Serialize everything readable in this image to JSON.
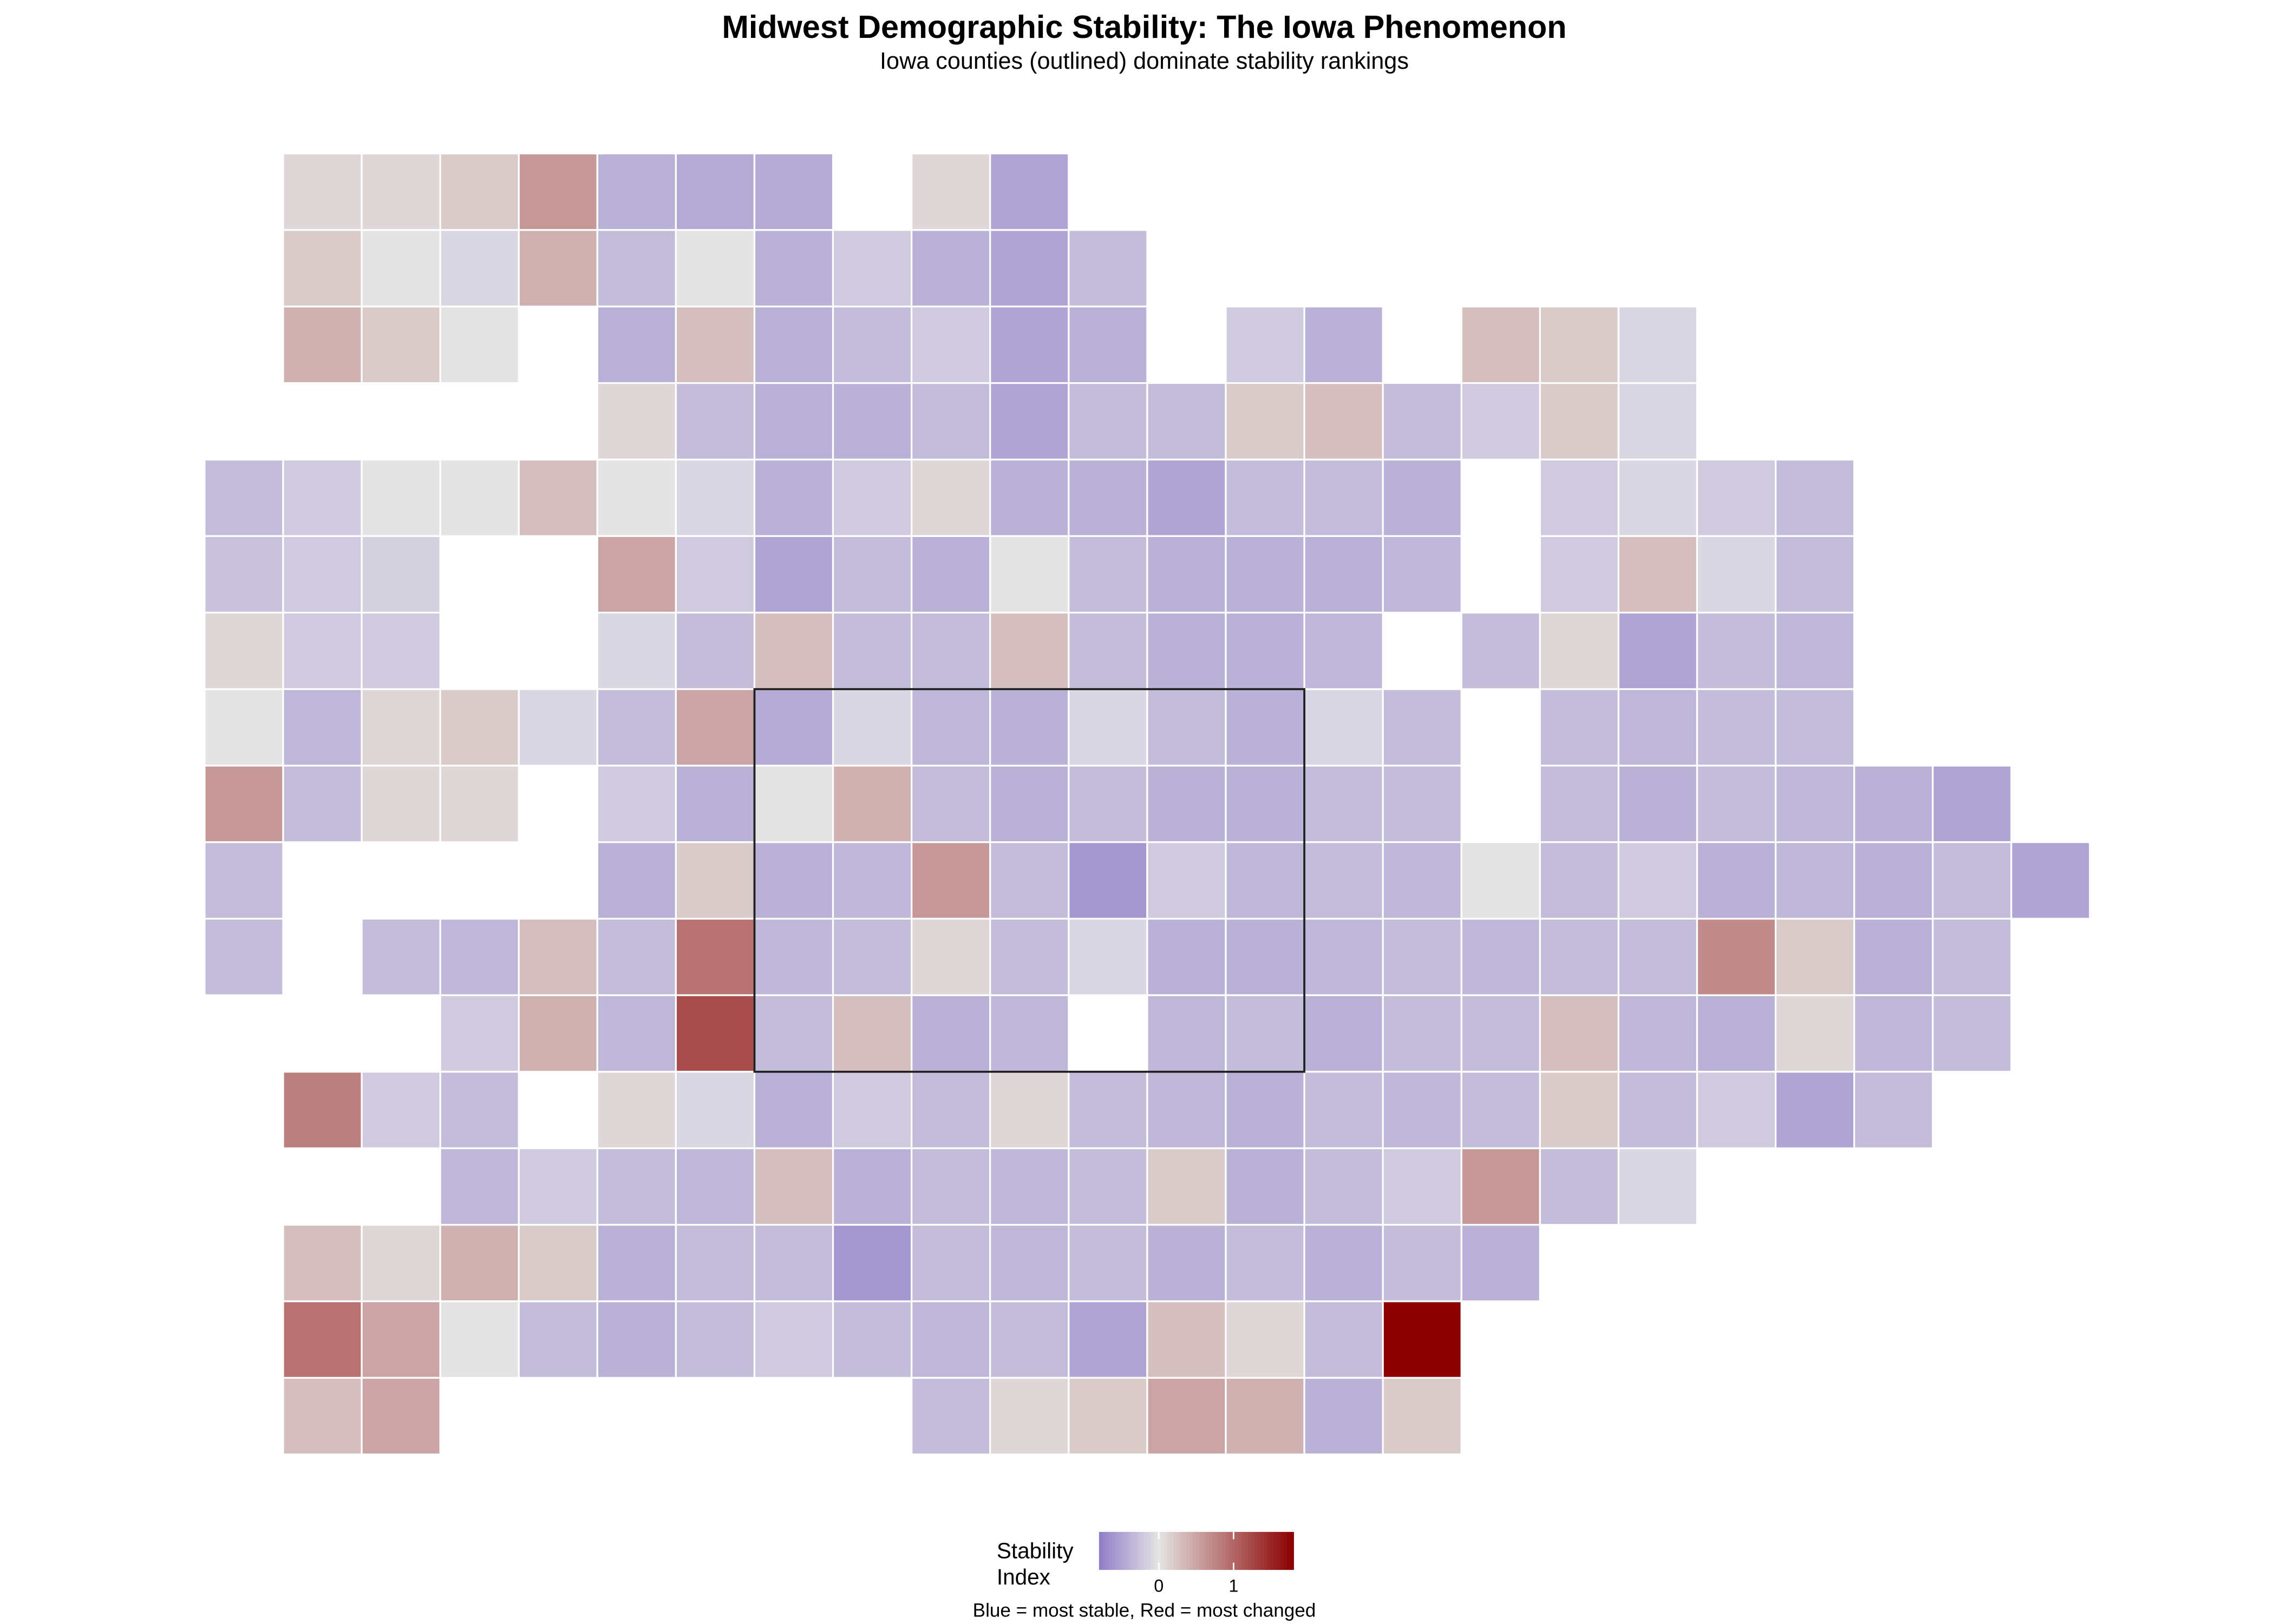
{
  "chart_data": {
    "type": "choropleth",
    "title": "Midwest Demographic Stability: The Iowa Phenomenon",
    "subtitle": "Iowa counties (outlined) dominate stability rankings",
    "legend_title": "Stability Index",
    "caption": "Blue = most stable, Red = most changed",
    "colors": {
      "low": "#8f7dc8",
      "mid": "#e4e4e4",
      "high": "#8b0000"
    },
    "lim": [
      -0.8,
      1.8
    ],
    "ticks": [
      0,
      1
    ],
    "grid": [
      [
        null,
        0.1,
        0.1,
        0.2,
        0.6,
        -0.4,
        -0.45,
        -0.45,
        null,
        0.1,
        -0.5,
        null,
        null,
        null,
        null,
        null,
        null,
        null,
        null,
        null,
        null,
        null,
        null,
        null
      ],
      [
        null,
        0.2,
        0,
        -0.1,
        0.4,
        -0.3,
        0,
        -0.4,
        -0.2,
        -0.4,
        -0.5,
        -0.3,
        null,
        null,
        null,
        null,
        null,
        null,
        null,
        null,
        null,
        null,
        null,
        null
      ],
      [
        null,
        0.4,
        0.2,
        0,
        null,
        -0.4,
        0.3,
        -0.4,
        -0.3,
        -0.2,
        -0.5,
        -0.4,
        null,
        -0.2,
        -0.4,
        null,
        0.3,
        0.2,
        -0.1,
        null,
        null,
        null,
        null,
        null
      ],
      [
        null,
        null,
        null,
        null,
        null,
        0.1,
        -0.3,
        -0.4,
        -0.4,
        -0.3,
        -0.5,
        -0.3,
        -0.3,
        0.2,
        0.3,
        -0.3,
        -0.2,
        0.2,
        -0.1,
        null,
        null,
        null,
        null,
        null
      ],
      [
        -0.3,
        -0.2,
        0,
        0,
        0.3,
        0,
        -0.1,
        -0.4,
        -0.2,
        0.1,
        -0.4,
        -0.4,
        -0.5,
        -0.3,
        -0.3,
        -0.4,
        null,
        -0.2,
        -0.1,
        -0.2,
        -0.3,
        null,
        null,
        null
      ],
      [
        -0.25,
        -0.2,
        -0.15,
        null,
        null,
        0.5,
        -0.2,
        -0.5,
        -0.3,
        -0.4,
        0,
        -0.3,
        -0.4,
        -0.4,
        -0.4,
        -0.35,
        null,
        -0.2,
        0.3,
        -0.1,
        -0.3,
        null,
        null,
        null
      ],
      [
        0.1,
        -0.2,
        -0.2,
        null,
        null,
        -0.1,
        -0.3,
        0.3,
        -0.3,
        -0.3,
        0.3,
        -0.3,
        -0.4,
        -0.4,
        -0.35,
        null,
        -0.3,
        0.1,
        -0.5,
        -0.3,
        -0.35,
        null,
        null,
        null
      ],
      [
        0,
        -0.35,
        0.1,
        0.2,
        -0.1,
        -0.3,
        0.5,
        -0.45,
        -0.1,
        -0.35,
        -0.4,
        -0.1,
        -0.3,
        -0.4,
        -0.1,
        -0.3,
        null,
        -0.3,
        -0.35,
        -0.3,
        -0.3,
        null,
        null,
        null
      ],
      [
        0.6,
        -0.3,
        0.1,
        0.1,
        null,
        -0.2,
        -0.4,
        0,
        0.4,
        -0.3,
        -0.4,
        -0.3,
        -0.4,
        -0.4,
        -0.3,
        -0.3,
        null,
        -0.3,
        -0.4,
        -0.3,
        -0.35,
        -0.4,
        -0.5,
        null
      ],
      [
        -0.3,
        null,
        null,
        null,
        null,
        -0.4,
        0.2,
        -0.4,
        -0.35,
        0.6,
        -0.3,
        -0.6,
        -0.2,
        -0.35,
        -0.3,
        -0.35,
        0,
        -0.3,
        -0.2,
        -0.4,
        -0.35,
        -0.4,
        -0.3,
        -0.5
      ],
      [
        -0.3,
        null,
        -0.3,
        -0.35,
        0.3,
        -0.3,
        0.9,
        -0.35,
        -0.3,
        0.1,
        -0.3,
        -0.1,
        -0.4,
        -0.4,
        -0.35,
        -0.3,
        -0.35,
        -0.3,
        -0.3,
        0.7,
        0.2,
        -0.4,
        -0.3,
        null
      ],
      [
        null,
        null,
        null,
        -0.2,
        0.4,
        -0.35,
        1.2,
        -0.3,
        0.3,
        -0.4,
        -0.35,
        null,
        -0.35,
        -0.3,
        -0.4,
        -0.3,
        -0.3,
        0.3,
        -0.35,
        -0.4,
        0.1,
        -0.35,
        -0.3,
        null
      ],
      [
        null,
        0.8,
        -0.2,
        -0.3,
        null,
        0.1,
        -0.1,
        -0.4,
        -0.2,
        -0.3,
        0.1,
        -0.3,
        -0.35,
        -0.4,
        -0.3,
        -0.35,
        -0.3,
        0.2,
        -0.3,
        -0.2,
        -0.5,
        -0.3,
        null,
        null
      ],
      [
        null,
        null,
        null,
        -0.35,
        -0.2,
        -0.3,
        -0.35,
        0.3,
        -0.4,
        -0.3,
        -0.35,
        -0.3,
        0.2,
        -0.4,
        -0.3,
        -0.2,
        0.6,
        -0.3,
        -0.1,
        null,
        null,
        null,
        null,
        null
      ],
      [
        null,
        0.3,
        0.1,
        0.4,
        0.2,
        -0.4,
        -0.3,
        -0.3,
        -0.6,
        -0.3,
        -0.35,
        -0.3,
        -0.4,
        -0.3,
        -0.4,
        -0.3,
        -0.4,
        null,
        null,
        null,
        null,
        null,
        null,
        null
      ],
      [
        null,
        0.9,
        0.5,
        0,
        -0.3,
        -0.4,
        -0.3,
        -0.2,
        -0.3,
        -0.35,
        -0.3,
        -0.5,
        0.3,
        0.1,
        -0.3,
        1.8,
        null,
        null,
        null,
        null,
        null,
        null,
        null,
        null
      ],
      [
        null,
        0.3,
        0.5,
        null,
        null,
        null,
        null,
        null,
        null,
        -0.3,
        0.1,
        0.2,
        0.5,
        0.4,
        -0.4,
        0.2,
        null,
        null,
        null,
        null,
        null,
        null,
        null,
        null
      ]
    ]
  }
}
